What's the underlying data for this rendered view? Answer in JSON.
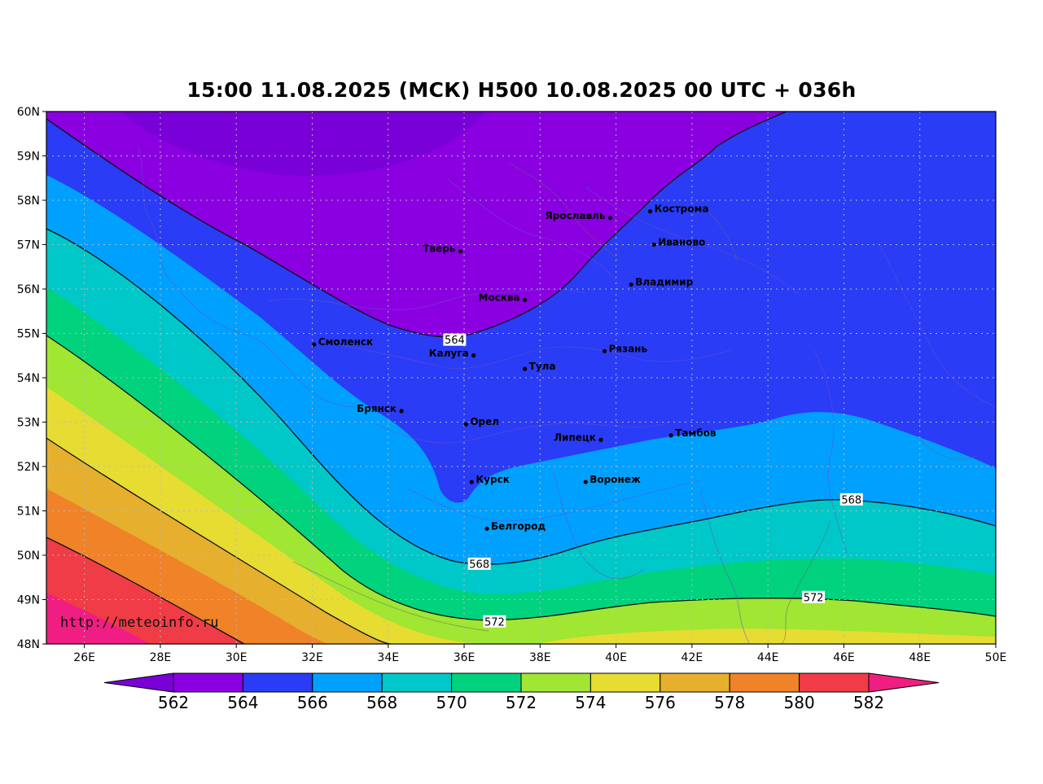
{
  "title": "15:00 11.08.2025 (МСК) H500  10.08.2025 00 UTC + 036h",
  "credit": "http://meteoinfo.ru",
  "lat_labels": [
    "48N",
    "49N",
    "50N",
    "51N",
    "52N",
    "53N",
    "54N",
    "55N",
    "56N",
    "57N",
    "58N",
    "59N",
    "60N"
  ],
  "lon_labels": [
    "26E",
    "28E",
    "30E",
    "32E",
    "34E",
    "36E",
    "38E",
    "40E",
    "42E",
    "44E",
    "46E",
    "48E",
    "50E"
  ],
  "cities": [
    {
      "name": "Кострома",
      "lon": 40.9,
      "lat": 57.75,
      "label_side": "right"
    },
    {
      "name": "Ярославль",
      "lon": 39.85,
      "lat": 57.6,
      "label_side": "left"
    },
    {
      "name": "Иваново",
      "lon": 41.0,
      "lat": 57.0,
      "label_side": "right"
    },
    {
      "name": "Тверь",
      "lon": 35.9,
      "lat": 56.85,
      "label_side": "left"
    },
    {
      "name": "Владимир",
      "lon": 40.4,
      "lat": 56.1,
      "label_side": "right"
    },
    {
      "name": "Москва",
      "lon": 37.6,
      "lat": 55.75,
      "label_side": "left"
    },
    {
      "name": "Смоленск",
      "lon": 32.05,
      "lat": 54.75,
      "label_side": "right"
    },
    {
      "name": "Калуга",
      "lon": 36.25,
      "lat": 54.5,
      "label_side": "left"
    },
    {
      "name": "Рязань",
      "lon": 39.7,
      "lat": 54.6,
      "label_side": "right"
    },
    {
      "name": "Тула",
      "lon": 37.6,
      "lat": 54.2,
      "label_side": "right"
    },
    {
      "name": "Брянск",
      "lon": 34.35,
      "lat": 53.25,
      "label_side": "left"
    },
    {
      "name": "Орел",
      "lon": 36.05,
      "lat": 52.95,
      "label_side": "right"
    },
    {
      "name": "Липецк",
      "lon": 39.6,
      "lat": 52.6,
      "label_side": "left"
    },
    {
      "name": "Тамбов",
      "lon": 41.45,
      "lat": 52.7,
      "label_side": "right"
    },
    {
      "name": "Курск",
      "lon": 36.2,
      "lat": 51.65,
      "label_side": "right"
    },
    {
      "name": "Воронеж",
      "lon": 39.2,
      "lat": 51.65,
      "label_side": "right"
    },
    {
      "name": "Белгород",
      "lon": 36.6,
      "lat": 50.6,
      "label_side": "right"
    }
  ],
  "contour_labels": [
    {
      "text": "564",
      "lon": 35.75,
      "lat": 54.85
    },
    {
      "text": "568",
      "lon": 36.4,
      "lat": 49.8
    },
    {
      "text": "568",
      "lon": 46.2,
      "lat": 51.25
    },
    {
      "text": "572",
      "lon": 36.8,
      "lat": 48.5
    },
    {
      "text": "572",
      "lon": 45.2,
      "lat": 49.05
    }
  ],
  "colorbar": {
    "levels": [
      "562",
      "564",
      "566",
      "568",
      "570",
      "572",
      "574",
      "576",
      "578",
      "580",
      "582"
    ],
    "colors": [
      "#7a00d8",
      "#8a00e0",
      "#2a3cf5",
      "#00a0ff",
      "#00c8c8",
      "#00d27d",
      "#a0e632",
      "#e6dc32",
      "#e6af2d",
      "#f08228",
      "#f03c46",
      "#f01e82"
    ]
  }
}
